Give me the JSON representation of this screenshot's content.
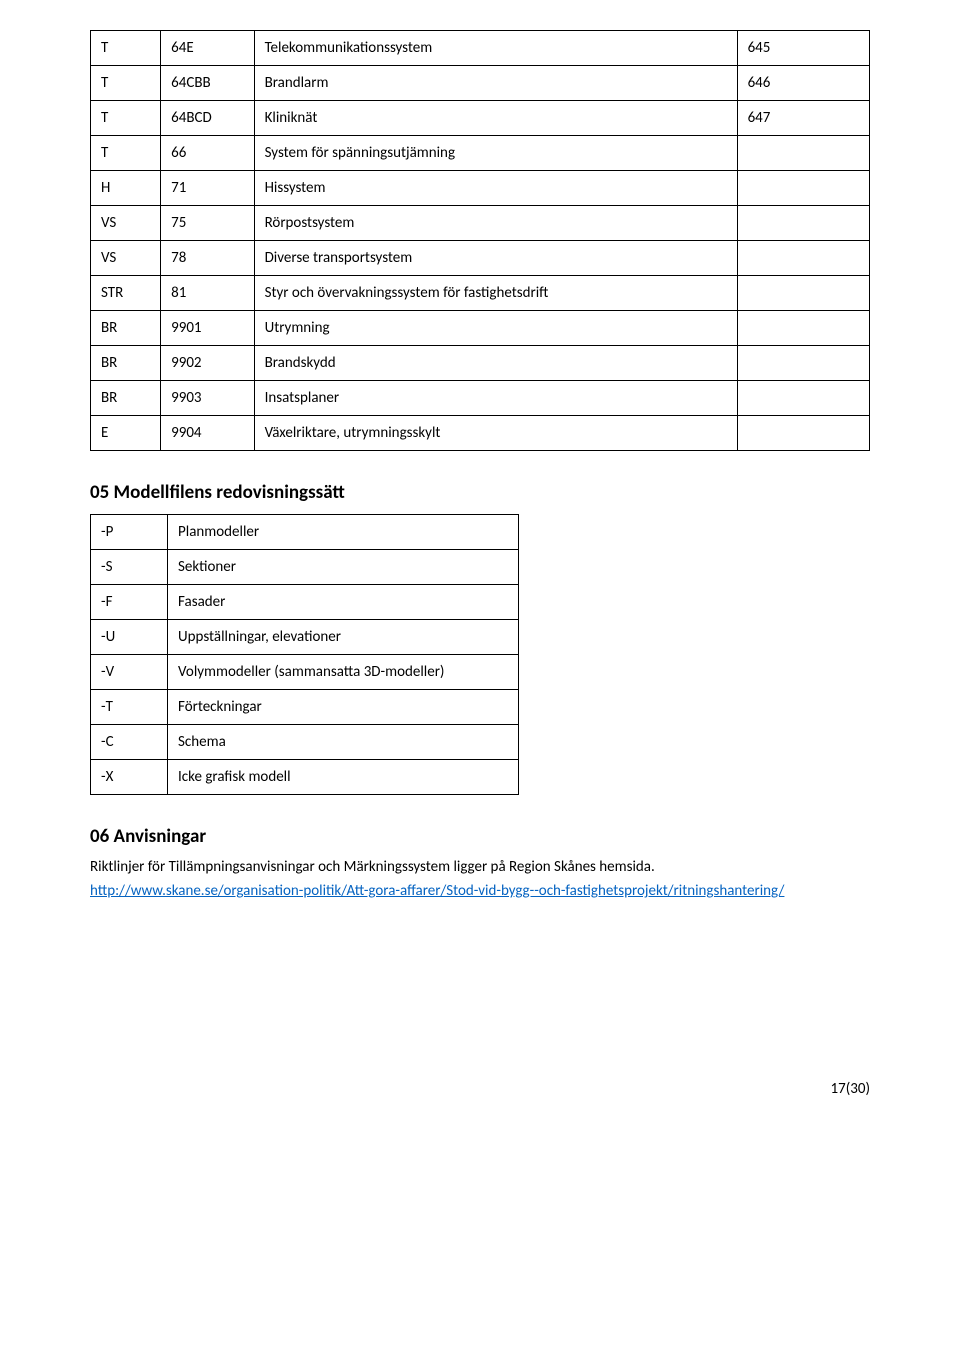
{
  "table1": {
    "rows": [
      [
        "T",
        "64E",
        "Telekommunikationssystem",
        "645"
      ],
      [
        "T",
        "64CBB",
        "Brandlarm",
        "646"
      ],
      [
        "T",
        "64BCD",
        "Kliniknät",
        "647"
      ],
      [
        "T",
        "66",
        "System för spänningsutjämning",
        ""
      ],
      [
        "H",
        "71",
        "Hissystem",
        ""
      ],
      [
        "VS",
        "75",
        "Rörpostsystem",
        ""
      ],
      [
        "VS",
        "78",
        "Diverse transportsystem",
        ""
      ],
      [
        "STR",
        "81",
        "Styr och övervakningssystem för fastighetsdrift",
        ""
      ],
      [
        "BR",
        "9901",
        "Utrymning",
        ""
      ],
      [
        "BR",
        "9902",
        "Brandskydd",
        ""
      ],
      [
        "BR",
        "9903",
        "Insatsplaner",
        ""
      ],
      [
        "E",
        "9904",
        "Växelriktare, utrymningsskylt",
        ""
      ]
    ]
  },
  "section05": {
    "title": "05 Modellfilens redovisningssätt"
  },
  "table2": {
    "rows": [
      [
        "-P",
        "Planmodeller"
      ],
      [
        "-S",
        "Sektioner"
      ],
      [
        "-F",
        "Fasader"
      ],
      [
        "-U",
        "Uppställningar, elevationer"
      ],
      [
        "-V",
        "Volymmodeller (sammansatta 3D-modeller)"
      ],
      [
        "-T",
        "Förteckningar"
      ],
      [
        "-C",
        "Schema"
      ],
      [
        "-X",
        "Icke grafisk modell"
      ]
    ]
  },
  "section06": {
    "title": "06 Anvisningar",
    "paragraph": "Riktlinjer för Tillämpningsanvisningar och Märkningssystem ligger på Region Skånes hemsida.",
    "link_text": "http://www.skane.se/organisation-politik/Att-gora-affarer/Stod-vid-bygg--och-fastighetsprojekt/ritningshantering/",
    "link_href": "http://www.skane.se/organisation-politik/Att-gora-affarer/Stod-vid-bygg--och-fastighetsprojekt/ritningshantering/"
  },
  "page_number": "17(30)"
}
